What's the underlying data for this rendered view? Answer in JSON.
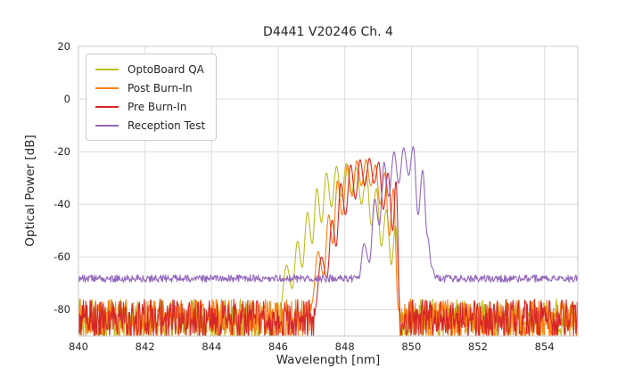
{
  "chart_data": {
    "type": "line",
    "title": "D4441 V20246 Ch. 4",
    "xlabel": "Wavelength [nm]",
    "ylabel": "Optical Power [dB]",
    "xlim": [
      840,
      855
    ],
    "ylim": [
      -90,
      20
    ],
    "xticks": [
      840,
      842,
      844,
      846,
      848,
      850,
      852,
      854
    ],
    "yticks": [
      20,
      0,
      -20,
      -40,
      -60,
      -80
    ],
    "grid": true,
    "legend_position": "upper left",
    "series": [
      {
        "name": "OptoBoard QA",
        "color": "#bcbd22",
        "noise": {
          "top": -76,
          "range": 15
        },
        "envelope": [
          [
            846.05,
            -80
          ],
          [
            846.25,
            -63
          ],
          [
            846.42,
            -72
          ],
          [
            846.58,
            -54
          ],
          [
            846.72,
            -64
          ],
          [
            846.88,
            -43
          ],
          [
            847.02,
            -55
          ],
          [
            847.16,
            -34
          ],
          [
            847.3,
            -47
          ],
          [
            847.45,
            -28
          ],
          [
            847.6,
            -41
          ],
          [
            847.75,
            -25.5
          ],
          [
            847.9,
            -37
          ],
          [
            848.05,
            -24.5
          ],
          [
            848.2,
            -36
          ],
          [
            848.35,
            -26
          ],
          [
            848.5,
            -40
          ],
          [
            848.65,
            -29
          ],
          [
            848.8,
            -48
          ],
          [
            848.95,
            -34
          ],
          [
            849.1,
            -56
          ],
          [
            849.25,
            -42
          ],
          [
            849.4,
            -63
          ],
          [
            849.52,
            -48
          ],
          [
            849.68,
            -82
          ]
        ]
      },
      {
        "name": "Post Burn-In",
        "color": "#ff7f0e",
        "noise": {
          "top": -76,
          "range": 15
        },
        "envelope": [
          [
            847.0,
            -78
          ],
          [
            847.2,
            -58
          ],
          [
            847.36,
            -67
          ],
          [
            847.52,
            -44
          ],
          [
            847.64,
            -55
          ],
          [
            847.78,
            -31
          ],
          [
            847.92,
            -44
          ],
          [
            848.08,
            -25
          ],
          [
            848.22,
            -37
          ],
          [
            848.36,
            -23.5
          ],
          [
            848.5,
            -33
          ],
          [
            848.64,
            -23
          ],
          [
            848.78,
            -33
          ],
          [
            848.92,
            -25
          ],
          [
            849.06,
            -40
          ],
          [
            849.2,
            -28
          ],
          [
            849.34,
            -52
          ],
          [
            849.46,
            -34
          ],
          [
            849.6,
            -78
          ]
        ]
      },
      {
        "name": "Pre Burn-In",
        "color": "#d62728",
        "noise": {
          "top": -76,
          "range": 15
        },
        "envelope": [
          [
            847.1,
            -80
          ],
          [
            847.3,
            -60
          ],
          [
            847.46,
            -68
          ],
          [
            847.62,
            -46
          ],
          [
            847.74,
            -56
          ],
          [
            847.88,
            -32
          ],
          [
            848.02,
            -44
          ],
          [
            848.18,
            -25
          ],
          [
            848.32,
            -38
          ],
          [
            848.46,
            -23
          ],
          [
            848.6,
            -33
          ],
          [
            848.74,
            -22.5
          ],
          [
            848.88,
            -32
          ],
          [
            849.02,
            -24
          ],
          [
            849.16,
            -42
          ],
          [
            849.3,
            -28
          ],
          [
            849.44,
            -50
          ],
          [
            849.54,
            -31
          ],
          [
            849.66,
            -82
          ]
        ]
      },
      {
        "name": "Reception Test",
        "color": "#9467bd",
        "noise": {
          "top": -66.8,
          "range": 2.8
        },
        "envelope": [
          [
            848.4,
            -70
          ],
          [
            848.58,
            -55
          ],
          [
            848.74,
            -62
          ],
          [
            848.9,
            -38
          ],
          [
            849.04,
            -48
          ],
          [
            849.18,
            -24
          ],
          [
            849.32,
            -37
          ],
          [
            849.48,
            -20
          ],
          [
            849.62,
            -32
          ],
          [
            849.77,
            -18.5
          ],
          [
            849.92,
            -29
          ],
          [
            850.06,
            -18
          ],
          [
            850.2,
            -44
          ],
          [
            850.34,
            -27
          ],
          [
            850.48,
            -52
          ],
          [
            850.62,
            -64
          ],
          [
            850.78,
            -70
          ]
        ]
      }
    ]
  },
  "style": {
    "grid_color": "#dcdcdc",
    "spine_color": "#c9c9c9",
    "text_color": "#262626",
    "background": "#ffffff"
  }
}
